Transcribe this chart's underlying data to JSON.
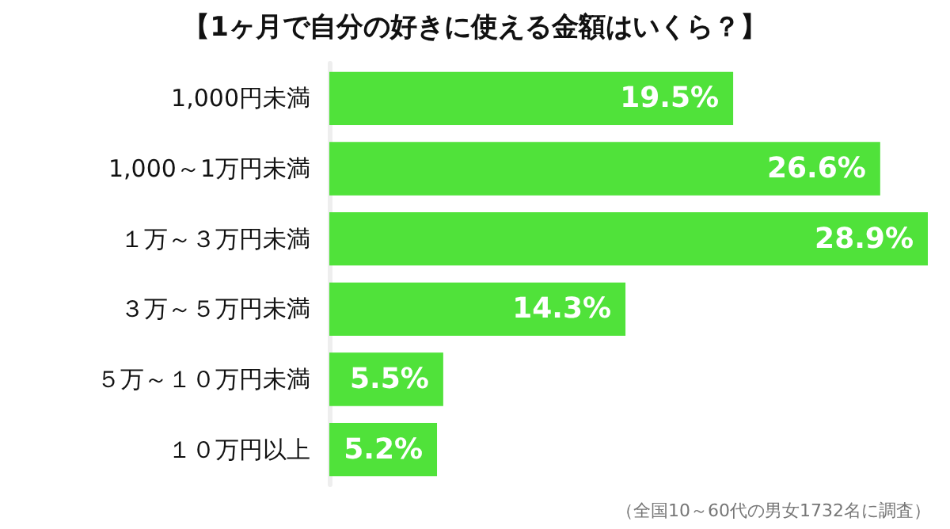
{
  "chart_data": {
    "type": "bar",
    "orientation": "horizontal",
    "title": "【1ヶ月で自分の好きに使える金額はいくら？】",
    "categories": [
      "1,000円未満",
      "1,000～1万円未満",
      "１万～３万円未満",
      "３万～５万円未満",
      "５万～１０万円未満",
      "１０万円以上"
    ],
    "values": [
      19.5,
      26.6,
      28.9,
      14.3,
      5.5,
      5.2
    ],
    "value_labels": [
      "19.5%",
      "26.6%",
      "28.9%",
      "14.3%",
      "5.5%",
      "5.2%"
    ],
    "color": "#50e23a",
    "annotations": [
      "（全国10～60代の男女1732名に調査）"
    ]
  }
}
